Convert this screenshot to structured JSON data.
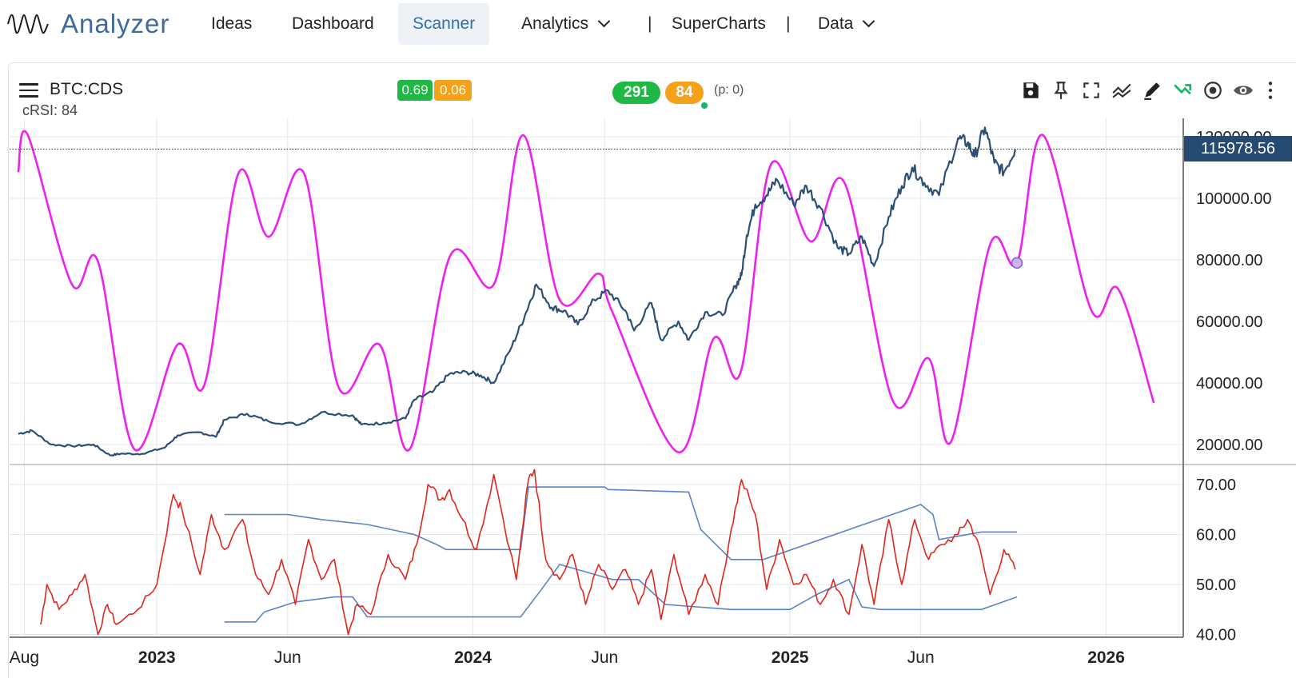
{
  "nav": {
    "brand": "Analyzer",
    "items": [
      {
        "label": "Ideas"
      },
      {
        "label": "Dashboard"
      },
      {
        "label": "Scanner",
        "active": true
      },
      {
        "label": "Analytics",
        "dropdown": true
      },
      {
        "label": "SuperCharts"
      },
      {
        "label": "Data",
        "dropdown": true
      }
    ],
    "separator": "|"
  },
  "chart_header": {
    "symbol": "BTC:CDS",
    "indicator_label": "cRSI: 84",
    "badge_green": "0.69",
    "badge_orange": "0.06",
    "pill_green": "291",
    "pill_orange": "84",
    "pending": "(p: 0)",
    "toolbar_icons": [
      "save-icon",
      "pin-icon",
      "fullscreen-icon",
      "trend-icon",
      "draw-icon",
      "crossover-icon",
      "target-icon",
      "eye-icon",
      "more-icon"
    ]
  },
  "colors": {
    "price_line": "#2c4f75",
    "cycle_line": "#f01ff0",
    "rsi_line": "#e0261d",
    "band_line": "#5b83c8",
    "badge_green": "#1fb845",
    "badge_orange": "#f5a11a",
    "price_tag": "#264a70"
  },
  "chart_data": {
    "type": "line",
    "x_axis": {
      "start": "2022-07-15",
      "end": "2026-03-31",
      "tick_labels": [
        {
          "label": "Aug",
          "date": "2022-08-01",
          "bold": false
        },
        {
          "label": "2023",
          "date": "2023-01-01",
          "bold": true
        },
        {
          "label": "Jun",
          "date": "2023-06-01",
          "bold": false
        },
        {
          "label": "2024",
          "date": "2024-01-01",
          "bold": true
        },
        {
          "label": "Jun",
          "date": "2024-06-01",
          "bold": false
        },
        {
          "label": "2025",
          "date": "2025-01-01",
          "bold": true
        },
        {
          "label": "Jun",
          "date": "2025-06-01",
          "bold": false
        },
        {
          "label": "2026",
          "date": "2026-01-01",
          "bold": true
        }
      ]
    },
    "price_panel": {
      "ylim": [
        15000,
        123000
      ],
      "y_ticks": [
        20000,
        40000,
        60000,
        80000,
        100000,
        120000
      ],
      "tick_labels": [
        "20000.00",
        "40000.00",
        "60000.00",
        "80000.00",
        "100000.00",
        "120000.00"
      ],
      "last_price": 115978.56,
      "last_price_label": "115978.56",
      "price_series": {
        "x": [
          "2022-07-25",
          "2022-08-10",
          "2022-09-01",
          "2022-09-25",
          "2022-10-20",
          "2022-11-08",
          "2022-11-20",
          "2022-12-15",
          "2023-01-10",
          "2023-01-25",
          "2023-02-20",
          "2023-03-10",
          "2023-03-20",
          "2023-04-15",
          "2023-05-10",
          "2023-06-15",
          "2023-07-10",
          "2023-08-15",
          "2023-08-25",
          "2023-09-20",
          "2023-10-15",
          "2023-10-25",
          "2023-11-15",
          "2023-12-05",
          "2023-12-25",
          "2024-01-10",
          "2024-01-25",
          "2024-02-15",
          "2024-03-01",
          "2024-03-14",
          "2024-04-01",
          "2024-04-15",
          "2024-05-01",
          "2024-05-20",
          "2024-06-05",
          "2024-06-25",
          "2024-07-05",
          "2024-07-25",
          "2024-08-05",
          "2024-08-25",
          "2024-09-06",
          "2024-09-25",
          "2024-10-15",
          "2024-10-30",
          "2024-11-06",
          "2024-11-12",
          "2024-11-22",
          "2024-12-05",
          "2024-12-17",
          "2025-01-05",
          "2025-01-20",
          "2025-02-05",
          "2025-02-25",
          "2025-03-10",
          "2025-03-25",
          "2025-04-08",
          "2025-04-25",
          "2025-05-10",
          "2025-05-22",
          "2025-06-05",
          "2025-06-22",
          "2025-07-14",
          "2025-07-25",
          "2025-08-02",
          "2025-08-14",
          "2025-08-25",
          "2025-09-05",
          "2025-09-18"
        ],
        "y": [
          23500,
          24500,
          20000,
          19500,
          20000,
          16500,
          17000,
          17000,
          19000,
          23000,
          24000,
          22500,
          28000,
          30000,
          27500,
          26500,
          30500,
          29500,
          26500,
          27000,
          28500,
          34500,
          37000,
          43000,
          43500,
          42500,
          40000,
          52000,
          62000,
          72000,
          64500,
          63500,
          59000,
          67000,
          70000,
          63500,
          57000,
          66000,
          54000,
          60000,
          54000,
          63000,
          62000,
          71500,
          75000,
          88000,
          98000,
          101000,
          106000,
          98000,
          104000,
          97000,
          84000,
          82000,
          87500,
          78000,
          94000,
          104000,
          110000,
          105000,
          101000,
          119500,
          118000,
          113500,
          123000,
          111500,
          108500,
          116000
        ]
      },
      "cycle_series": {
        "x": [
          "2022-07-25",
          "2022-08-05",
          "2022-09-25",
          "2022-10-25",
          "2022-12-06",
          "2023-01-25",
          "2023-02-25",
          "2023-04-05",
          "2023-05-10",
          "2023-06-20",
          "2023-07-30",
          "2023-09-15",
          "2023-10-20",
          "2023-12-06",
          "2024-01-25",
          "2024-02-28",
          "2024-04-10",
          "2024-05-25",
          "2024-06-10",
          "2024-08-25",
          "2024-10-05",
          "2024-11-05",
          "2024-12-10",
          "2025-01-25",
          "2025-03-05",
          "2025-04-30",
          "2025-06-10",
          "2025-07-06",
          "2025-08-20",
          "2025-09-20",
          "2025-10-20",
          "2025-12-15",
          "2026-01-15",
          "2026-02-25"
        ],
        "y": [
          108500,
          120500,
          72000,
          79500,
          18500,
          52500,
          39500,
          108000,
          87500,
          108000,
          38500,
          52500,
          18500,
          81500,
          72000,
          120500,
          67000,
          75500,
          63000,
          17500,
          54500,
          43500,
          111000,
          86000,
          105000,
          34000,
          48000,
          21000,
          85000,
          79000,
          120500,
          63500,
          70500,
          33500
        ],
        "marker": {
          "x": "2025-09-20",
          "y": 79000
        }
      }
    },
    "rsi_panel": {
      "ylim": [
        40,
        73
      ],
      "y_ticks": [
        40,
        50,
        60,
        70
      ],
      "tick_labels": [
        "40.00",
        "50.00",
        "60.00",
        "70.00"
      ],
      "rsi_series": {
        "x": [
          "2022-08-20",
          "2022-08-27",
          "2022-09-10",
          "2022-09-25",
          "2022-10-10",
          "2022-10-25",
          "2022-11-05",
          "2022-11-15",
          "2022-12-10",
          "2023-01-01",
          "2023-01-20",
          "2023-01-30",
          "2023-02-20",
          "2023-03-05",
          "2023-03-20",
          "2023-04-10",
          "2023-04-25",
          "2023-05-10",
          "2023-05-25",
          "2023-06-10",
          "2023-06-25",
          "2023-07-10",
          "2023-07-25",
          "2023-08-10",
          "2023-08-20",
          "2023-09-05",
          "2023-09-25",
          "2023-10-15",
          "2023-10-28",
          "2023-11-10",
          "2023-11-25",
          "2023-12-05",
          "2023-12-20",
          "2024-01-05",
          "2024-01-25",
          "2024-02-20",
          "2024-03-05",
          "2024-03-12",
          "2024-03-25",
          "2024-04-10",
          "2024-04-25",
          "2024-05-10",
          "2024-05-25",
          "2024-06-10",
          "2024-06-25",
          "2024-07-10",
          "2024-07-25",
          "2024-08-05",
          "2024-08-20",
          "2024-09-06",
          "2024-09-25",
          "2024-10-10",
          "2024-10-25",
          "2024-11-06",
          "2024-11-22",
          "2024-12-05",
          "2024-12-20",
          "2025-01-05",
          "2025-01-20",
          "2025-02-05",
          "2025-02-20",
          "2025-03-10",
          "2025-03-25",
          "2025-04-08",
          "2025-04-25",
          "2025-05-10",
          "2025-05-25",
          "2025-06-10",
          "2025-06-25",
          "2025-07-14",
          "2025-07-25",
          "2025-08-05",
          "2025-08-20",
          "2025-09-05",
          "2025-09-18"
        ],
        "y": [
          42,
          50,
          45,
          48,
          52,
          40,
          46,
          42,
          45,
          50,
          68,
          65,
          52,
          64,
          57,
          63,
          52,
          48,
          55,
          46,
          59,
          51,
          55,
          40,
          46,
          44,
          56,
          51,
          58,
          70,
          67,
          69,
          63,
          57,
          72,
          51,
          71,
          73,
          55,
          51,
          56,
          46,
          54,
          49,
          53,
          46,
          53,
          43,
          56,
          44,
          52,
          46,
          61,
          71,
          64,
          49,
          59,
          50,
          52,
          46,
          51,
          44,
          58,
          46,
          63,
          50,
          63,
          55,
          58,
          60,
          63,
          59,
          48,
          57,
          53
        ]
      },
      "upper_band": {
        "x": [
          "2023-03-20",
          "2023-06-01",
          "2023-07-10",
          "2023-09-01",
          "2023-10-25",
          "2023-11-20",
          "2023-12-01",
          "2024-02-25",
          "2024-03-05",
          "2024-06-01",
          "2024-06-05",
          "2024-09-06",
          "2024-09-20",
          "2024-10-25",
          "2024-11-15",
          "2024-12-01",
          "2025-06-01",
          "2025-06-15",
          "2025-06-22",
          "2025-08-10",
          "2025-09-20"
        ],
        "y": [
          64,
          64,
          63,
          62,
          60,
          58,
          57,
          57,
          69.5,
          69.5,
          69,
          68.5,
          61,
          55,
          55,
          55,
          66,
          64,
          59,
          60.5,
          60.5
        ],
        "dash": true
      },
      "lower_band": {
        "x": [
          "2023-03-20",
          "2023-04-25",
          "2023-05-05",
          "2023-06-10",
          "2023-07-25",
          "2023-08-15",
          "2023-09-01",
          "2023-10-25",
          "2024-02-25",
          "2024-03-20",
          "2024-04-10",
          "2024-06-10",
          "2024-07-10",
          "2024-08-10",
          "2024-10-25",
          "2025-01-01",
          "2025-02-01",
          "2025-03-10",
          "2025-03-25",
          "2025-04-15",
          "2025-08-10",
          "2025-09-20"
        ],
        "y": [
          42.5,
          42.5,
          44.5,
          46.5,
          47.5,
          47.5,
          43.5,
          43.5,
          43.5,
          49,
          54,
          51,
          51,
          46,
          45,
          45,
          48,
          51,
          45.5,
          45,
          45,
          47.5
        ],
        "dash": false
      }
    }
  }
}
